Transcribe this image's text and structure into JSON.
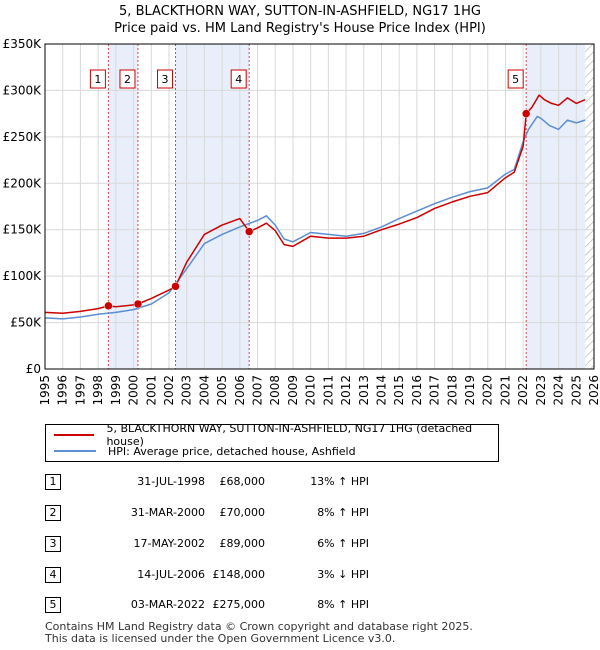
{
  "title_line1": "5, BLACKTHORN WAY, SUTTON-IN-ASHFIELD, NG17 1HG",
  "title_line2": "Price paid vs. HM Land Registry's House Price Index (HPI)",
  "colors": {
    "price": "#cc0000",
    "hpi": "#5b8fd1",
    "shade": "#e8eefa",
    "grid": "#d9d9d9"
  },
  "legend": [
    {
      "label": "5, BLACKTHORN WAY, SUTTON-IN-ASHFIELD, NG17 1HG (detached house)"
    },
    {
      "label": "HPI: Average price, detached house, Ashfield"
    }
  ],
  "sales": [
    {
      "n": "1",
      "date": "31-JUL-1998",
      "price": "£68,000",
      "pct": "13% ↑ HPI"
    },
    {
      "n": "2",
      "date": "31-MAR-2000",
      "price": "£70,000",
      "pct": "8% ↑ HPI"
    },
    {
      "n": "3",
      "date": "17-MAY-2002",
      "price": "£89,000",
      "pct": "6% ↑ HPI"
    },
    {
      "n": "4",
      "date": "14-JUL-2006",
      "price": "£148,000",
      "pct": "3% ↓ HPI"
    },
    {
      "n": "5",
      "date": "03-MAR-2022",
      "price": "£275,000",
      "pct": "8% ↑ HPI"
    }
  ],
  "footer": [
    "Contains HM Land Registry data © Crown copyright and database right 2025.",
    "This data is licensed under the Open Government Licence v3.0."
  ],
  "chart_data": {
    "type": "line",
    "title": "5, BLACKTHORN WAY, SUTTON-IN-ASHFIELD, NG17 1HG",
    "subtitle": "Price paid vs. HM Land Registry's House Price Index (HPI)",
    "xlim": [
      1995,
      2026
    ],
    "ylim": [
      0,
      350000
    ],
    "x_ticks": [
      "1995",
      "1996",
      "1997",
      "1998",
      "1999",
      "2000",
      "2001",
      "2002",
      "2003",
      "2004",
      "2005",
      "2006",
      "2007",
      "2008",
      "2009",
      "2010",
      "2011",
      "2012",
      "2013",
      "2014",
      "2015",
      "2016",
      "2017",
      "2018",
      "2019",
      "2020",
      "2021",
      "2022",
      "2023",
      "2024",
      "2025",
      "2026"
    ],
    "y_ticks": [
      {
        "v": 0,
        "label": "£0"
      },
      {
        "v": 50000,
        "label": "£50K"
      },
      {
        "v": 100000,
        "label": "£100K"
      },
      {
        "v": 150000,
        "label": "£150K"
      },
      {
        "v": 200000,
        "label": "£200K"
      },
      {
        "v": 250000,
        "label": "£250K"
      },
      {
        "v": 300000,
        "label": "£300K"
      },
      {
        "v": 350000,
        "label": "£350K"
      }
    ],
    "shaded_ranges": [
      [
        1998.58,
        2000.25
      ],
      [
        2002.37,
        2006.53
      ],
      [
        2022.17,
        2025.5
      ]
    ],
    "future_hatch_from": 2025.5,
    "sale_points": [
      {
        "label": "1",
        "x": 1998.58,
        "y": 68000
      },
      {
        "label": "2",
        "x": 2000.25,
        "y": 70000
      },
      {
        "label": "3",
        "x": 2002.37,
        "y": 89000
      },
      {
        "label": "4",
        "x": 2006.53,
        "y": 148000
      },
      {
        "label": "5",
        "x": 2022.17,
        "y": 275000
      }
    ],
    "series": [
      {
        "name": "HPI: Average price, detached house, Ashfield",
        "x": [
          1995,
          1996,
          1997,
          1998,
          1999,
          2000,
          2001,
          2002,
          2003,
          2004,
          2005,
          2006,
          2007,
          2007.5,
          2008,
          2008.5,
          2009,
          2010,
          2011,
          2012,
          2013,
          2014,
          2015,
          2016,
          2017,
          2018,
          2019,
          2020,
          2021,
          2021.5,
          2022,
          2022.3,
          2022.8,
          2023,
          2023.5,
          2024,
          2024.5,
          2025,
          2025.5
        ],
        "y": [
          55000,
          54000,
          56000,
          59000,
          61000,
          64000,
          70000,
          82000,
          108000,
          135000,
          145000,
          153000,
          160000,
          165000,
          155000,
          140000,
          137000,
          147000,
          145000,
          143000,
          146000,
          153000,
          162000,
          170000,
          178000,
          185000,
          191000,
          195000,
          210000,
          215000,
          245000,
          258000,
          272000,
          270000,
          262000,
          258000,
          268000,
          265000,
          268000
        ]
      },
      {
        "name": "5, BLACKTHORN WAY, SUTTON-IN-ASHFIELD, NG17 1HG (detached house)",
        "x": [
          1995,
          1996,
          1997,
          1998,
          1998.58,
          1999,
          2000,
          2000.25,
          2001,
          2002,
          2002.37,
          2003,
          2004,
          2005,
          2006,
          2006.53,
          2007,
          2007.5,
          2008,
          2008.5,
          2009,
          2010,
          2011,
          2012,
          2013,
          2014,
          2015,
          2016,
          2017,
          2018,
          2019,
          2020,
          2021,
          2021.5,
          2022,
          2022.17,
          2022.5,
          2022.9,
          2023.2,
          2023.6,
          2024,
          2024.5,
          2025,
          2025.5
        ],
        "y": [
          61000,
          60000,
          62000,
          65000,
          68000,
          67000,
          69000,
          70000,
          76000,
          85000,
          89000,
          115000,
          145000,
          155000,
          162000,
          148000,
          152000,
          157000,
          149000,
          134000,
          132000,
          143000,
          141000,
          141000,
          143000,
          150000,
          156000,
          163000,
          173000,
          180000,
          186000,
          190000,
          206000,
          212000,
          240000,
          275000,
          282000,
          295000,
          290000,
          286000,
          284000,
          292000,
          286000,
          290000
        ]
      }
    ]
  }
}
